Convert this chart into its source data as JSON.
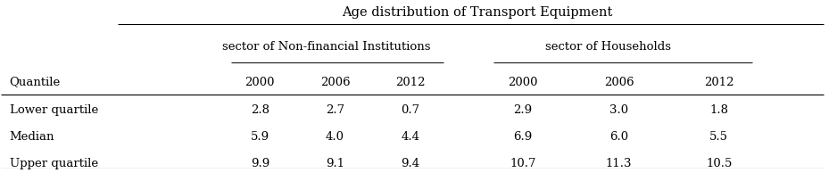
{
  "title": "Age distribution of Transport Equipment",
  "col_header_level1": [
    "sector of Non-financial Institutions",
    "sector of Households"
  ],
  "col_header_level2": [
    "2000",
    "2006",
    "2012",
    "2000",
    "2006",
    "2012"
  ],
  "row_header": "Quantile",
  "rows": [
    {
      "label": "Lower quartile",
      "values": [
        "2.8",
        "2.7",
        "0.7",
        "2.9",
        "3.0",
        "1.8"
      ]
    },
    {
      "label": "Median",
      "values": [
        "5.9",
        "4.0",
        "4.4",
        "6.9",
        "6.0",
        "5.5"
      ]
    },
    {
      "label": "Upper quartile",
      "values": [
        "9.9",
        "9.1",
        "9.4",
        "10.7",
        "11.3",
        "10.5"
      ]
    }
  ],
  "bg_color": "#ffffff",
  "text_color": "#000000",
  "font_size": 9.5,
  "title_font_size": 10.5
}
